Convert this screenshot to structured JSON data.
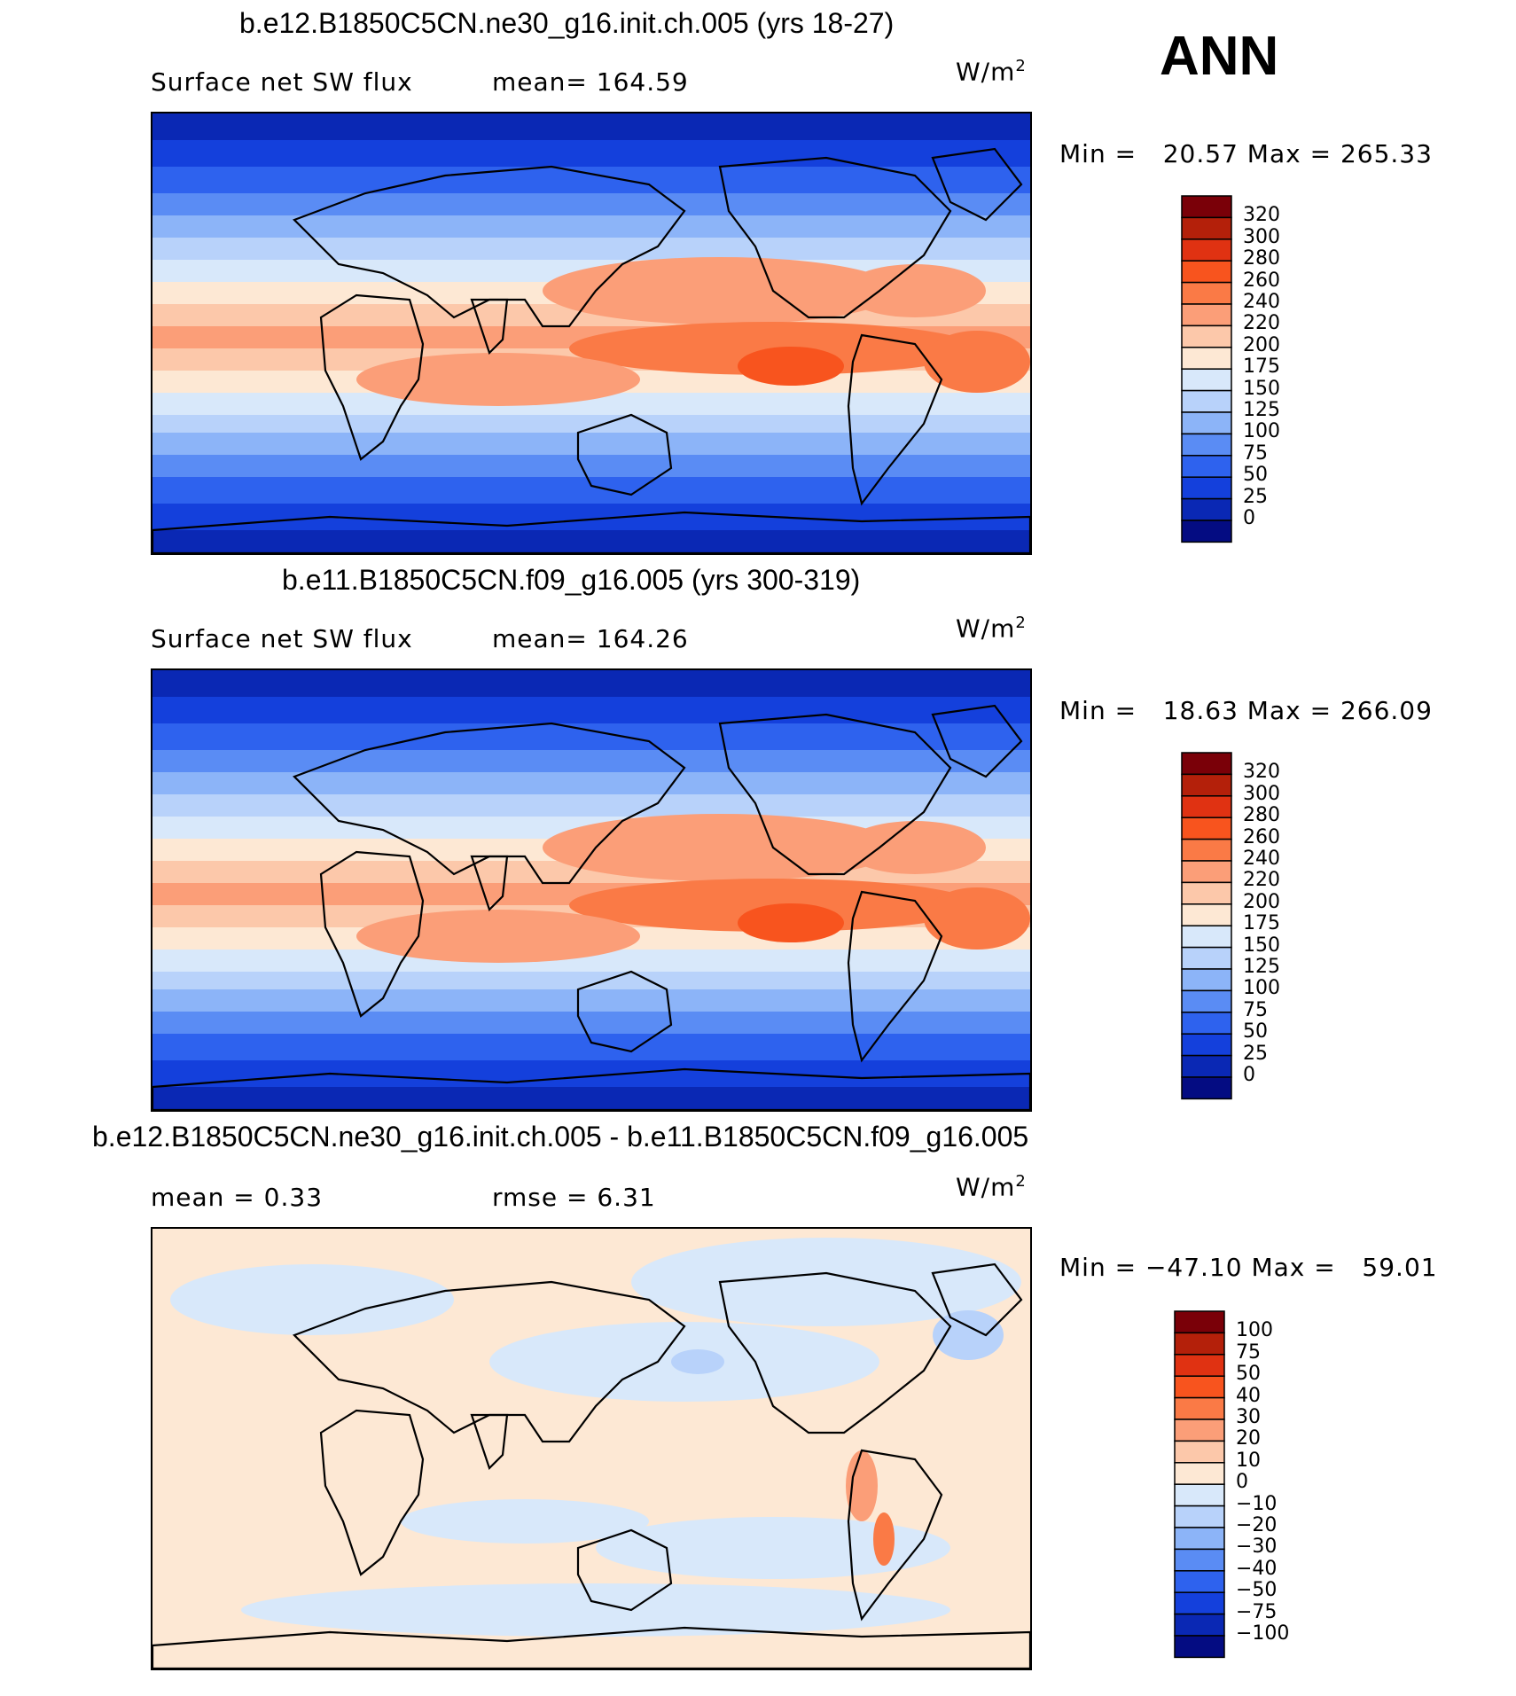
{
  "corner_label": "ANN",
  "panels": [
    {
      "title": "b.e12.B1850C5CN.ne30_g16.init.ch.005 (yrs 18-27)",
      "subtitle_left": "Surface net SW flux",
      "subtitle_mid": "mean= 164.59",
      "units": "W/m",
      "units_sup": "2",
      "minmax": "Min =   20.57 Max = 265.33",
      "colorbar_levels": [
        "320",
        "300",
        "280",
        "260",
        "240",
        "220",
        "200",
        "175",
        "150",
        "125",
        "100",
        "75",
        "50",
        "25",
        "0"
      ],
      "map_kind": "field"
    },
    {
      "title": "b.e11.B1850C5CN.f09_g16.005 (yrs 300-319)",
      "subtitle_left": "Surface net SW flux",
      "subtitle_mid": "mean= 164.26",
      "units": "W/m",
      "units_sup": "2",
      "minmax": "Min =   18.63 Max = 266.09",
      "colorbar_levels": [
        "320",
        "300",
        "280",
        "260",
        "240",
        "220",
        "200",
        "175",
        "150",
        "125",
        "100",
        "75",
        "50",
        "25",
        "0"
      ],
      "map_kind": "field"
    },
    {
      "title": "b.e12.B1850C5CN.ne30_g16.init.ch.005 - b.e11.B1850C5CN.f09_g16.005",
      "subtitle_left": "mean =    0.33",
      "subtitle_mid": "rmse =    6.31",
      "units": "W/m",
      "units_sup": "2",
      "minmax": "Min = −47.10 Max =   59.01",
      "colorbar_levels": [
        "100",
        "75",
        "50",
        "40",
        "30",
        "20",
        "10",
        "0",
        "−10",
        "−20",
        "−30",
        "−40",
        "−50",
        "−75",
        "−100"
      ],
      "map_kind": "diff"
    }
  ],
  "colors": {
    "field_scale": [
      "#7a0008",
      "#b4200a",
      "#e03212",
      "#f8541e",
      "#fa7a46",
      "#fb9e78",
      "#fcc8aa",
      "#fde8d4",
      "#d8e8fa",
      "#b8d2fa",
      "#8cb4f8",
      "#5a8cf4",
      "#2e62ee",
      "#1440dc",
      "#0a28b4",
      "#040c82"
    ],
    "diff_scale": [
      "#7a0008",
      "#b4200a",
      "#e03212",
      "#f8541e",
      "#fa7a46",
      "#fb9e78",
      "#fcc8aa",
      "#fde8d4",
      "#d8e8fa",
      "#b8d2fa",
      "#8cb4f8",
      "#5a8cf4",
      "#2e62ee",
      "#1440dc",
      "#0a28b4",
      "#040c82"
    ]
  }
}
